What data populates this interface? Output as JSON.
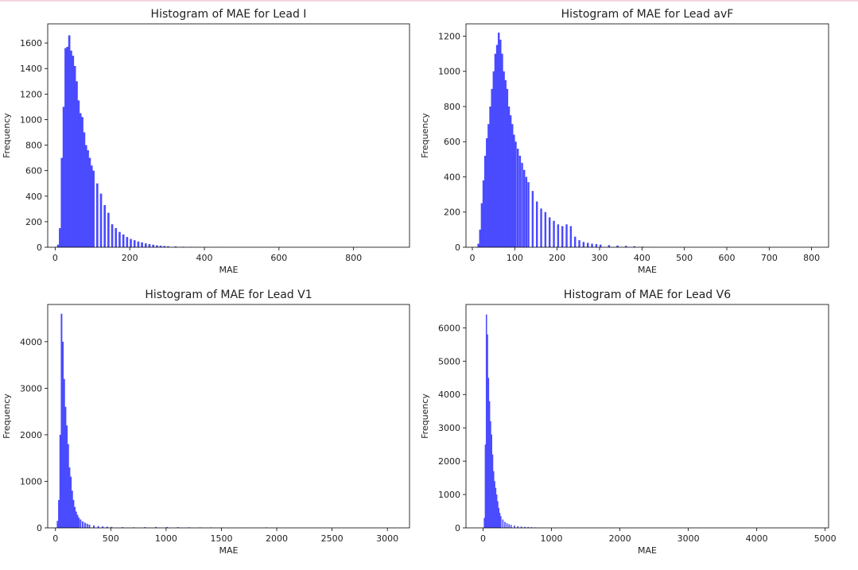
{
  "chart_data": [
    {
      "type": "bar",
      "title": "Histogram of MAE for Lead I",
      "xlabel": "MAE",
      "ylabel": "Frequency",
      "xlim": [
        -20,
        950
      ],
      "ylim": [
        0,
        1750
      ],
      "xticks": [
        0,
        200,
        400,
        600,
        800
      ],
      "yticks": [
        0,
        200,
        400,
        600,
        800,
        1000,
        1200,
        1400,
        1600
      ],
      "color": "#4a4aff",
      "bin_width": 5,
      "x": [
        5,
        10,
        15,
        20,
        25,
        30,
        35,
        40,
        45,
        50,
        55,
        60,
        65,
        70,
        75,
        80,
        85,
        90,
        95,
        100,
        110,
        120,
        130,
        140,
        150,
        160,
        170,
        180,
        190,
        200,
        210,
        220,
        230,
        240,
        250,
        260,
        270,
        280,
        290,
        300,
        320,
        340,
        360,
        380,
        400,
        440,
        480,
        520
      ],
      "values": [
        20,
        150,
        700,
        1100,
        1560,
        1570,
        1660,
        1540,
        1500,
        1420,
        1300,
        1150,
        1050,
        1020,
        900,
        800,
        760,
        700,
        640,
        600,
        500,
        420,
        330,
        270,
        180,
        150,
        120,
        100,
        80,
        65,
        55,
        45,
        38,
        30,
        25,
        20,
        15,
        12,
        10,
        8,
        6,
        4,
        3,
        2,
        1,
        1,
        0,
        0
      ]
    },
    {
      "type": "bar",
      "title": "Histogram of MAE for Lead avF",
      "xlabel": "MAE",
      "ylabel": "Frequency",
      "xlim": [
        -15,
        840
      ],
      "ylim": [
        0,
        1270
      ],
      "xticks": [
        0,
        100,
        200,
        300,
        400,
        500,
        600,
        700,
        800
      ],
      "yticks": [
        0,
        200,
        400,
        600,
        800,
        1000,
        1200
      ],
      "color": "#4a4aff",
      "bin_width": 4,
      "x": [
        12,
        16,
        20,
        24,
        28,
        32,
        36,
        40,
        44,
        48,
        52,
        56,
        60,
        64,
        68,
        72,
        76,
        80,
        84,
        88,
        92,
        96,
        100,
        105,
        110,
        115,
        120,
        125,
        130,
        140,
        150,
        160,
        170,
        180,
        190,
        200,
        210,
        220,
        230,
        240,
        250,
        260,
        270,
        280,
        290,
        300,
        320,
        340,
        360,
        380,
        400,
        420
      ],
      "values": [
        20,
        100,
        250,
        380,
        520,
        620,
        700,
        800,
        900,
        1000,
        1100,
        1150,
        1220,
        1180,
        1100,
        1000,
        950,
        900,
        800,
        750,
        700,
        640,
        600,
        560,
        520,
        480,
        440,
        400,
        370,
        320,
        260,
        220,
        200,
        170,
        150,
        130,
        120,
        130,
        120,
        60,
        40,
        30,
        25,
        20,
        18,
        15,
        12,
        10,
        8,
        6,
        3,
        1
      ]
    },
    {
      "type": "bar",
      "title": "Histogram of MAE for Lead V1",
      "xlabel": "MAE",
      "ylabel": "Frequency",
      "xlim": [
        -70,
        3200
      ],
      "ylim": [
        0,
        4800
      ],
      "xticks": [
        0,
        500,
        1000,
        1500,
        2000,
        2500,
        3000
      ],
      "yticks": [
        0,
        1000,
        2000,
        3000,
        4000
      ],
      "color": "#4a4aff",
      "bin_width": 12,
      "x": [
        12,
        24,
        36,
        48,
        60,
        72,
        84,
        96,
        108,
        120,
        132,
        144,
        156,
        168,
        180,
        192,
        204,
        220,
        240,
        260,
        280,
        300,
        340,
        380,
        420,
        460,
        500,
        600,
        700,
        800,
        900,
        1000,
        1100,
        1200,
        1300,
        1400,
        1500,
        1700,
        1900,
        2000,
        2100
      ],
      "values": [
        150,
        600,
        2000,
        4600,
        4000,
        3200,
        2600,
        2200,
        1800,
        1300,
        1100,
        800,
        600,
        450,
        350,
        280,
        220,
        180,
        140,
        110,
        90,
        70,
        50,
        40,
        30,
        25,
        20,
        15,
        12,
        15,
        20,
        18,
        15,
        12,
        10,
        10,
        8,
        6,
        10,
        8,
        2
      ]
    },
    {
      "type": "bar",
      "title": "Histogram of MAE for Lead V6",
      "xlabel": "MAE",
      "ylabel": "Frequency",
      "xlim": [
        -250,
        5050
      ],
      "ylim": [
        0,
        6700
      ],
      "xticks": [
        0,
        1000,
        2000,
        3000,
        4000,
        5000
      ],
      "yticks": [
        0,
        1000,
        2000,
        3000,
        4000,
        5000,
        6000
      ],
      "color": "#4a4aff",
      "bin_width": 15,
      "x": [
        10,
        25,
        40,
        55,
        70,
        85,
        100,
        115,
        130,
        145,
        160,
        175,
        190,
        205,
        220,
        235,
        250,
        280,
        310,
        340,
        370,
        400,
        450,
        500,
        550,
        600,
        650,
        700,
        750,
        800,
        850
      ],
      "values": [
        300,
        2500,
        6400,
        5800,
        4500,
        3800,
        3200,
        2800,
        2200,
        1700,
        1400,
        1200,
        1000,
        800,
        600,
        450,
        350,
        250,
        180,
        140,
        110,
        90,
        70,
        50,
        40,
        30,
        25,
        20,
        15,
        8,
        3
      ]
    }
  ]
}
